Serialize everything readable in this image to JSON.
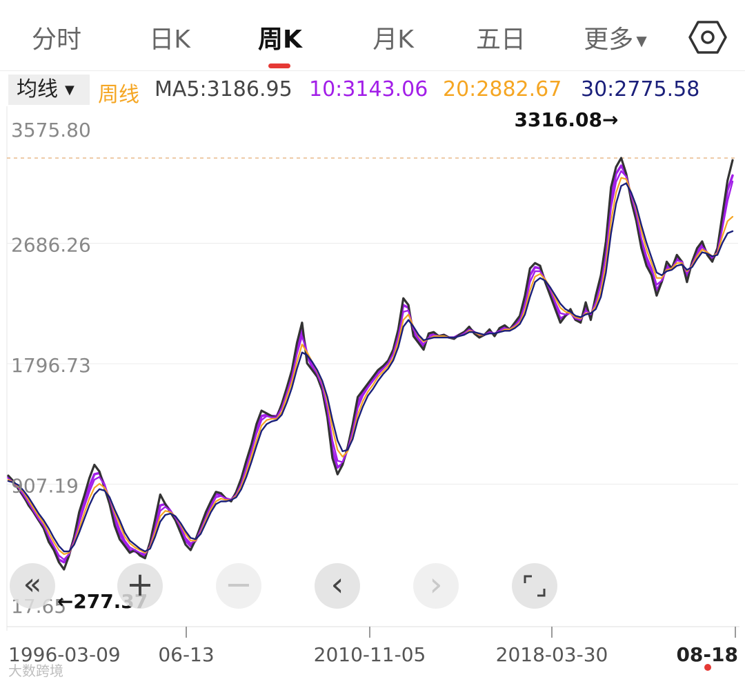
{
  "tabs": [
    {
      "label": "分时",
      "active": false
    },
    {
      "label": "日K",
      "active": false
    },
    {
      "label": "周K",
      "active": true
    },
    {
      "label": "月K",
      "active": false
    },
    {
      "label": "五日",
      "active": false
    },
    {
      "label": "更多",
      "active": false
    }
  ],
  "legend": {
    "selector": "均线",
    "period": "周线",
    "ma5": "MA5:3186.95",
    "ma10": "10:3143.06",
    "ma20": "20:2882.67",
    "ma30": "30:2775.58"
  },
  "colors": {
    "accent": "#e53935",
    "price": "#333333",
    "ma5": "#a21ee8",
    "ma10": "#a21ee8",
    "ma20": "#f5a623",
    "ma30": "#1a1f7a",
    "dashed": "#e8b98a"
  },
  "icons": {
    "settings": "hexagon-gear-icon",
    "more_caret": "caret-down-icon"
  },
  "controls": [
    {
      "name": "fast-back-button",
      "glyph": "«",
      "enabled": true
    },
    {
      "name": "zoom-in-button",
      "glyph": "+",
      "enabled": true
    },
    {
      "name": "zoom-out-button",
      "glyph": "−",
      "enabled": false
    },
    {
      "name": "prev-button",
      "glyph": "‹",
      "enabled": true
    },
    {
      "name": "next-button",
      "glyph": "›",
      "enabled": false
    },
    {
      "name": "fullscreen-button",
      "glyph": "fullscreen-icon",
      "enabled": true
    }
  ],
  "watermark": "大数跨境",
  "chart_data": {
    "type": "line",
    "title": "",
    "xlabel": "",
    "ylabel": "",
    "ylim": [
      17.65,
      3575.8
    ],
    "y_ticks": [
      "3575.80",
      "2686.26",
      "1796.73",
      "907.19",
      "17.65"
    ],
    "y_tick_values": [
      3575.8,
      2686.26,
      1796.73,
      907.19,
      17.65
    ],
    "x_ticks": [
      "1996-03-09",
      "06-13",
      "2010-11-05",
      "2018-03-30",
      "08-18"
    ],
    "max_label": "3316.08→",
    "max_value": 3316.08,
    "min_label": "←277.37",
    "min_value": 277.37,
    "grid": true,
    "series": [
      {
        "name": "周线",
        "values": [
          970,
          930,
          870,
          820,
          750,
          700,
          640,
          580,
          480,
          420,
          330,
          277.37,
          380,
          520,
          700,
          820,
          950,
          1050,
          1000,
          880,
          760,
          600,
          500,
          450,
          400,
          420,
          380,
          360,
          480,
          650,
          830,
          760,
          700,
          640,
          550,
          460,
          420,
          500,
          600,
          700,
          780,
          850,
          840,
          800,
          780,
          850,
          950,
          1080,
          1200,
          1350,
          1450,
          1430,
          1410,
          1400,
          1500,
          1620,
          1750,
          1950,
          2100,
          1800,
          1750,
          1700,
          1600,
          1400,
          1100,
          980,
          1050,
          1180,
          1350,
          1550,
          1600,
          1650,
          1700,
          1750,
          1780,
          1820,
          1900,
          2050,
          2280,
          2230,
          2000,
          1950,
          1900,
          2020,
          2030,
          2000,
          2010,
          1990,
          1980,
          2010,
          2030,
          2070,
          2020,
          1990,
          2010,
          2050,
          2000,
          2060,
          2080,
          2050,
          2100,
          2150,
          2300,
          2500,
          2540,
          2520,
          2400,
          2300,
          2200,
          2100,
          2150,
          2200,
          2120,
          2100,
          2250,
          2120,
          2300,
          2450,
          2700,
          3100,
          3250,
          3316.08,
          3200,
          3000,
          2850,
          2650,
          2520,
          2450,
          2300,
          2400,
          2550,
          2500,
          2600,
          2550,
          2400,
          2550,
          2650,
          2700,
          2600,
          2550,
          2650,
          2900,
          3150,
          3300
        ]
      },
      {
        "name": "MA5",
        "values": [
          960,
          920,
          875,
          815,
          760,
          700,
          640,
          590,
          500,
          430,
          350,
          330,
          390,
          510,
          650,
          780,
          890,
          980,
          990,
          900,
          780,
          640,
          540,
          470,
          420,
          410,
          390,
          380,
          460,
          600,
          750,
          760,
          710,
          650,
          570,
          490,
          450,
          490,
          580,
          680,
          760,
          830,
          830,
          800,
          790,
          840,
          930,
          1050,
          1170,
          1310,
          1410,
          1420,
          1410,
          1410,
          1490,
          1600,
          1730,
          1910,
          2050,
          1860,
          1770,
          1710,
          1610,
          1430,
          1160,
          1030,
          1060,
          1170,
          1330,
          1510,
          1580,
          1640,
          1690,
          1740,
          1770,
          1810,
          1890,
          2030,
          2230,
          2210,
          2020,
          1960,
          1920,
          2010,
          2020,
          2000,
          2010,
          1990,
          1990,
          2010,
          2030,
          2060,
          2030,
          2000,
          2010,
          2040,
          2010,
          2050,
          2070,
          2050,
          2090,
          2140,
          2270,
          2450,
          2510,
          2500,
          2410,
          2320,
          2220,
          2130,
          2150,
          2180,
          2120,
          2110,
          2220,
          2140,
          2280,
          2420,
          2650,
          3020,
          3200,
          3260,
          3190,
          3020,
          2880,
          2690,
          2560,
          2480,
          2340,
          2400,
          2520,
          2500,
          2580,
          2550,
          2430,
          2540,
          2630,
          2680,
          2610,
          2560,
          2630,
          2850,
          3080,
          3186.95
        ]
      },
      {
        "name": "MA10",
        "values": [
          950,
          920,
          880,
          830,
          770,
          710,
          650,
          600,
          520,
          450,
          380,
          350,
          390,
          490,
          620,
          740,
          850,
          940,
          960,
          900,
          800,
          670,
          570,
          490,
          440,
          420,
          400,
          390,
          450,
          580,
          710,
          740,
          710,
          660,
          590,
          510,
          470,
          490,
          570,
          660,
          740,
          810,
          820,
          800,
          790,
          830,
          910,
          1030,
          1150,
          1280,
          1380,
          1410,
          1400,
          1400,
          1470,
          1580,
          1700,
          1870,
          2000,
          1880,
          1790,
          1720,
          1630,
          1460,
          1230,
          1080,
          1070,
          1160,
          1300,
          1470,
          1560,
          1620,
          1670,
          1720,
          1760,
          1800,
          1870,
          2000,
          2180,
          2190,
          2050,
          1980,
          1940,
          1990,
          2010,
          2000,
          2000,
          1990,
          1990,
          2000,
          2020,
          2050,
          2030,
          2010,
          2010,
          2030,
          2020,
          2040,
          2060,
          2050,
          2080,
          2120,
          2230,
          2400,
          2480,
          2480,
          2420,
          2340,
          2250,
          2170,
          2160,
          2170,
          2130,
          2120,
          2190,
          2160,
          2250,
          2380,
          2600,
          2950,
          3140,
          3220,
          3180,
          3040,
          2900,
          2720,
          2590,
          2500,
          2380,
          2410,
          2500,
          2500,
          2560,
          2550,
          2460,
          2530,
          2610,
          2660,
          2620,
          2580,
          2620,
          2800,
          3000,
          3143.06
        ]
      },
      {
        "name": "MA20",
        "values": [
          940,
          920,
          890,
          850,
          790,
          730,
          670,
          620,
          550,
          480,
          420,
          390,
          400,
          470,
          580,
          690,
          800,
          880,
          910,
          880,
          810,
          700,
          610,
          520,
          470,
          440,
          420,
          400,
          440,
          550,
          670,
          710,
          700,
          670,
          610,
          540,
          490,
          490,
          550,
          640,
          720,
          780,
          800,
          790,
          790,
          820,
          890,
          990,
          1110,
          1230,
          1340,
          1380,
          1390,
          1390,
          1440,
          1550,
          1660,
          1810,
          1940,
          1880,
          1810,
          1740,
          1660,
          1520,
          1320,
          1160,
          1110,
          1150,
          1260,
          1420,
          1520,
          1590,
          1640,
          1700,
          1740,
          1780,
          1840,
          1960,
          2120,
          2160,
          2070,
          2000,
          1960,
          1980,
          2000,
          2000,
          2000,
          1990,
          1990,
          2000,
          2010,
          2040,
          2030,
          2010,
          2010,
          2020,
          2020,
          2030,
          2050,
          2050,
          2070,
          2100,
          2190,
          2340,
          2440,
          2460,
          2420,
          2360,
          2280,
          2210,
          2180,
          2170,
          2140,
          2130,
          2170,
          2170,
          2220,
          2330,
          2530,
          2850,
          3060,
          3170,
          3160,
          3060,
          2940,
          2780,
          2640,
          2540,
          2430,
          2430,
          2490,
          2500,
          2540,
          2540,
          2480,
          2520,
          2590,
          2640,
          2620,
          2590,
          2610,
          2740,
          2850,
          2882.67
        ]
      },
      {
        "name": "MA30",
        "values": [
          930,
          920,
          900,
          860,
          810,
          750,
          690,
          640,
          580,
          510,
          450,
          410,
          410,
          460,
          550,
          650,
          750,
          830,
          870,
          860,
          810,
          720,
          640,
          550,
          490,
          460,
          430,
          410,
          430,
          520,
          630,
          680,
          690,
          670,
          620,
          560,
          510,
          500,
          540,
          620,
          700,
          760,
          780,
          780,
          790,
          810,
          870,
          960,
          1070,
          1190,
          1300,
          1350,
          1370,
          1380,
          1420,
          1510,
          1620,
          1760,
          1880,
          1860,
          1810,
          1750,
          1670,
          1550,
          1380,
          1230,
          1150,
          1160,
          1240,
          1380,
          1480,
          1560,
          1610,
          1670,
          1720,
          1760,
          1820,
          1920,
          2070,
          2120,
          2070,
          2010,
          1970,
          1980,
          1990,
          1990,
          1990,
          1990,
          1990,
          2000,
          2010,
          2030,
          2030,
          2020,
          2010,
          2020,
          2020,
          2030,
          2040,
          2040,
          2060,
          2090,
          2160,
          2290,
          2400,
          2430,
          2410,
          2360,
          2300,
          2240,
          2200,
          2180,
          2150,
          2140,
          2160,
          2170,
          2200,
          2290,
          2470,
          2760,
          2980,
          3110,
          3130,
          3060,
          2960,
          2820,
          2690,
          2580,
          2470,
          2450,
          2480,
          2490,
          2520,
          2530,
          2490,
          2510,
          2570,
          2620,
          2610,
          2590,
          2600,
          2690,
          2760,
          2775.58
        ]
      }
    ]
  }
}
